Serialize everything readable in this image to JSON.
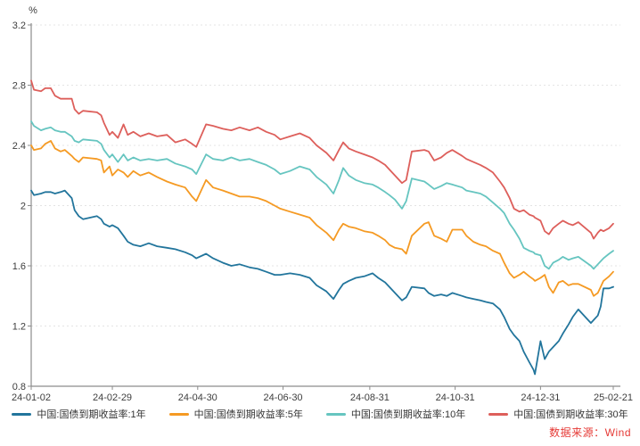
{
  "chart_data": {
    "type": "line",
    "unit_label": "%",
    "grid": "horizontal-dashed",
    "legend_position": "bottom",
    "y_axis": {
      "min": 0.8,
      "max": 3.2,
      "step": 0.4,
      "tick_labels": [
        "0.8",
        "1.2",
        "1.6",
        "2",
        "2.4",
        "2.8",
        "3.2"
      ]
    },
    "x_ticks": [
      {
        "label": "24-01-02",
        "date": "2024-01-02"
      },
      {
        "label": "24-02-29",
        "date": "2024-02-29"
      },
      {
        "label": "24-04-30",
        "date": "2024-04-30"
      },
      {
        "label": "24-06-30",
        "date": "2024-06-30"
      },
      {
        "label": "24-08-31",
        "date": "2024-08-31"
      },
      {
        "label": "24-10-31",
        "date": "2024-10-31"
      },
      {
        "label": "24-12-31",
        "date": "2024-12-31"
      },
      {
        "label": "25-02-21",
        "date": "2025-02-21"
      }
    ],
    "x_dates": [
      "2024-01-02",
      "2024-01-04",
      "2024-01-09",
      "2024-01-12",
      "2024-01-16",
      "2024-01-19",
      "2024-01-23",
      "2024-01-26",
      "2024-01-31",
      "2024-02-02",
      "2024-02-05",
      "2024-02-08",
      "2024-02-18",
      "2024-02-21",
      "2024-02-23",
      "2024-02-27",
      "2024-02-29",
      "2024-03-04",
      "2024-03-08",
      "2024-03-11",
      "2024-03-15",
      "2024-03-20",
      "2024-03-26",
      "2024-04-01",
      "2024-04-08",
      "2024-04-14",
      "2024-04-21",
      "2024-04-26",
      "2024-04-29",
      "2024-05-06",
      "2024-05-11",
      "2024-05-18",
      "2024-05-24",
      "2024-05-30",
      "2024-06-06",
      "2024-06-12",
      "2024-06-18",
      "2024-06-24",
      "2024-06-28",
      "2024-07-05",
      "2024-07-12",
      "2024-07-19",
      "2024-07-24",
      "2024-07-31",
      "2024-08-05",
      "2024-08-09",
      "2024-08-12",
      "2024-08-16",
      "2024-08-21",
      "2024-08-27",
      "2024-09-02",
      "2024-09-06",
      "2024-09-11",
      "2024-09-14",
      "2024-09-18",
      "2024-09-23",
      "2024-09-26",
      "2024-09-30",
      "2024-10-09",
      "2024-10-12",
      "2024-10-16",
      "2024-10-21",
      "2024-10-25",
      "2024-10-29",
      "2024-11-05",
      "2024-11-08",
      "2024-11-13",
      "2024-11-18",
      "2024-11-22",
      "2024-11-27",
      "2024-12-02",
      "2024-12-05",
      "2024-12-09",
      "2024-12-12",
      "2024-12-16",
      "2024-12-19",
      "2024-12-23",
      "2024-12-26",
      "2024-12-27",
      "2024-12-31",
      "2025-01-03",
      "2025-01-06",
      "2025-01-09",
      "2025-01-13",
      "2025-01-16",
      "2025-01-20",
      "2025-01-23",
      "2025-01-27",
      "2025-02-05",
      "2025-02-07",
      "2025-02-10",
      "2025-02-12",
      "2025-02-14",
      "2025-02-18",
      "2025-02-21"
    ],
    "series": [
      {
        "name": "中国:国债到期收益率:1年",
        "color": "#22759c",
        "values": [
          2.1,
          2.07,
          2.08,
          2.09,
          2.09,
          2.08,
          2.09,
          2.1,
          2.05,
          1.97,
          1.93,
          1.91,
          1.93,
          1.91,
          1.88,
          1.86,
          1.87,
          1.85,
          1.8,
          1.76,
          1.74,
          1.73,
          1.75,
          1.73,
          1.72,
          1.71,
          1.69,
          1.67,
          1.65,
          1.68,
          1.65,
          1.62,
          1.6,
          1.61,
          1.59,
          1.58,
          1.56,
          1.54,
          1.54,
          1.55,
          1.54,
          1.52,
          1.47,
          1.43,
          1.38,
          1.44,
          1.48,
          1.5,
          1.52,
          1.53,
          1.55,
          1.52,
          1.49,
          1.46,
          1.42,
          1.37,
          1.39,
          1.46,
          1.45,
          1.42,
          1.4,
          1.41,
          1.4,
          1.42,
          1.4,
          1.39,
          1.38,
          1.37,
          1.36,
          1.35,
          1.31,
          1.26,
          1.18,
          1.14,
          1.1,
          1.03,
          0.96,
          0.91,
          0.88,
          1.1,
          0.98,
          1.03,
          1.06,
          1.1,
          1.15,
          1.21,
          1.26,
          1.31,
          1.22,
          1.24,
          1.27,
          1.33,
          1.45,
          1.45,
          1.46
        ]
      },
      {
        "name": "中国:国债到期收益率:5年",
        "color": "#f59a23",
        "values": [
          2.4,
          2.37,
          2.38,
          2.41,
          2.43,
          2.38,
          2.36,
          2.37,
          2.33,
          2.31,
          2.29,
          2.32,
          2.31,
          2.3,
          2.22,
          2.26,
          2.2,
          2.24,
          2.22,
          2.19,
          2.23,
          2.2,
          2.22,
          2.19,
          2.16,
          2.14,
          2.12,
          2.06,
          2.03,
          2.17,
          2.12,
          2.1,
          2.08,
          2.06,
          2.06,
          2.05,
          2.03,
          2.0,
          1.98,
          1.96,
          1.94,
          1.92,
          1.87,
          1.82,
          1.77,
          1.84,
          1.88,
          1.86,
          1.85,
          1.83,
          1.82,
          1.8,
          1.77,
          1.74,
          1.72,
          1.71,
          1.68,
          1.8,
          1.88,
          1.89,
          1.8,
          1.78,
          1.76,
          1.84,
          1.84,
          1.8,
          1.76,
          1.74,
          1.73,
          1.7,
          1.68,
          1.62,
          1.55,
          1.52,
          1.54,
          1.56,
          1.53,
          1.51,
          1.5,
          1.52,
          1.54,
          1.46,
          1.42,
          1.49,
          1.5,
          1.47,
          1.48,
          1.48,
          1.44,
          1.4,
          1.42,
          1.46,
          1.5,
          1.53,
          1.56
        ]
      },
      {
        "name": "中国:国债到期收益率:10年",
        "color": "#66c5c0",
        "values": [
          2.56,
          2.53,
          2.5,
          2.51,
          2.52,
          2.5,
          2.49,
          2.49,
          2.46,
          2.43,
          2.42,
          2.44,
          2.43,
          2.41,
          2.37,
          2.32,
          2.34,
          2.29,
          2.34,
          2.3,
          2.32,
          2.3,
          2.31,
          2.3,
          2.31,
          2.28,
          2.26,
          2.24,
          2.21,
          2.34,
          2.31,
          2.3,
          2.32,
          2.3,
          2.31,
          2.29,
          2.27,
          2.24,
          2.21,
          2.23,
          2.26,
          2.24,
          2.19,
          2.14,
          2.08,
          2.17,
          2.25,
          2.2,
          2.17,
          2.15,
          2.14,
          2.12,
          2.09,
          2.07,
          2.04,
          1.98,
          2.03,
          2.18,
          2.16,
          2.14,
          2.11,
          2.13,
          2.15,
          2.14,
          2.12,
          2.1,
          2.09,
          2.08,
          2.06,
          2.02,
          1.98,
          1.95,
          1.88,
          1.84,
          1.78,
          1.72,
          1.7,
          1.69,
          1.68,
          1.67,
          1.6,
          1.58,
          1.62,
          1.64,
          1.66,
          1.64,
          1.65,
          1.66,
          1.6,
          1.58,
          1.61,
          1.63,
          1.65,
          1.68,
          1.7
        ]
      },
      {
        "name": "中国:国债到期收益率:30年",
        "color": "#dd5f5b",
        "values": [
          2.83,
          2.77,
          2.76,
          2.78,
          2.78,
          2.73,
          2.71,
          2.71,
          2.71,
          2.64,
          2.61,
          2.63,
          2.62,
          2.6,
          2.55,
          2.47,
          2.49,
          2.45,
          2.54,
          2.47,
          2.49,
          2.46,
          2.48,
          2.46,
          2.47,
          2.42,
          2.44,
          2.41,
          2.39,
          2.54,
          2.53,
          2.51,
          2.5,
          2.52,
          2.5,
          2.52,
          2.49,
          2.47,
          2.44,
          2.46,
          2.48,
          2.45,
          2.4,
          2.35,
          2.3,
          2.37,
          2.42,
          2.38,
          2.36,
          2.34,
          2.32,
          2.3,
          2.27,
          2.24,
          2.2,
          2.15,
          2.17,
          2.36,
          2.37,
          2.36,
          2.3,
          2.32,
          2.35,
          2.37,
          2.33,
          2.31,
          2.29,
          2.27,
          2.25,
          2.22,
          2.16,
          2.12,
          2.05,
          1.98,
          1.96,
          1.97,
          1.94,
          1.93,
          1.92,
          1.9,
          1.83,
          1.81,
          1.85,
          1.88,
          1.9,
          1.88,
          1.87,
          1.89,
          1.82,
          1.78,
          1.82,
          1.84,
          1.83,
          1.85,
          1.88
        ]
      }
    ]
  },
  "source_note": "数据来源：Wind",
  "colors": {
    "axis": "#8c8c8c",
    "grid": "#e4e4e4",
    "text": "#3d3d3d",
    "source": "#e53935",
    "background": "#ffffff"
  }
}
